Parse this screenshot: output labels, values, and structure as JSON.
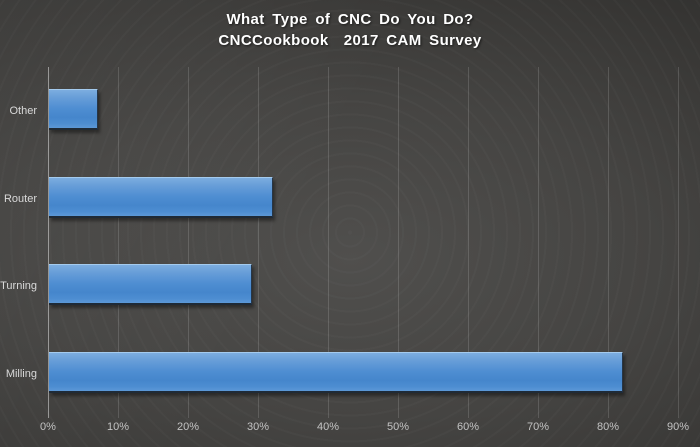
{
  "title": {
    "line1": "What Type of CNC Do You Do?",
    "line2": "CNCCookbook  2017 CAM Survey"
  },
  "chart_data": {
    "type": "bar",
    "orientation": "horizontal",
    "title": "What Type of CNC Do You Do?",
    "subtitle": "CNCCookbook 2017 CAM Survey",
    "categories": [
      "Other",
      "Router",
      "Turning",
      "Milling"
    ],
    "values": [
      7,
      32,
      29,
      82
    ],
    "unit": "%",
    "xlabel": "",
    "ylabel": "",
    "xlim": [
      0,
      90
    ],
    "x_tick_step": 10,
    "x_tick_labels": [
      "0%",
      "10%",
      "20%",
      "30%",
      "40%",
      "50%",
      "60%",
      "70%",
      "80%",
      "90%"
    ],
    "grid": true,
    "legend": false,
    "category_order_note": "displayed top to bottom: Other, Router, Turning, Milling"
  },
  "colors": {
    "bar_fill": "#4F8ED2",
    "bar_highlight": "#7CADE0",
    "bar_shadow_edge": "#1F2A36",
    "background_center": "#504F4D",
    "background_edge": "#272726",
    "gridline": "#5E5E5E",
    "axis_line": "#9B9B9B",
    "title_text": "#FFFFFF",
    "category_label_text": "#D9D9D9",
    "tick_label_text": "#C3C3C3"
  }
}
